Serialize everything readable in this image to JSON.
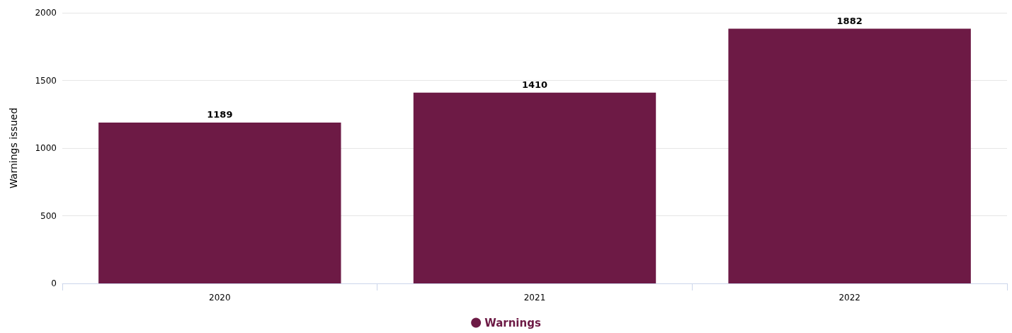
{
  "chart_data": {
    "type": "bar",
    "ylabel": "Warnings issued",
    "categories": [
      "2020",
      "2021",
      "2022"
    ],
    "series": [
      {
        "name": "Warnings",
        "color": "#6d1a45",
        "values": [
          1189,
          1410,
          1882
        ]
      }
    ],
    "ylim": [
      0,
      2000
    ],
    "yticks": [
      0,
      500,
      1000,
      1500,
      2000
    ],
    "grid": "y",
    "legend": "bottom",
    "data_labels": true
  }
}
